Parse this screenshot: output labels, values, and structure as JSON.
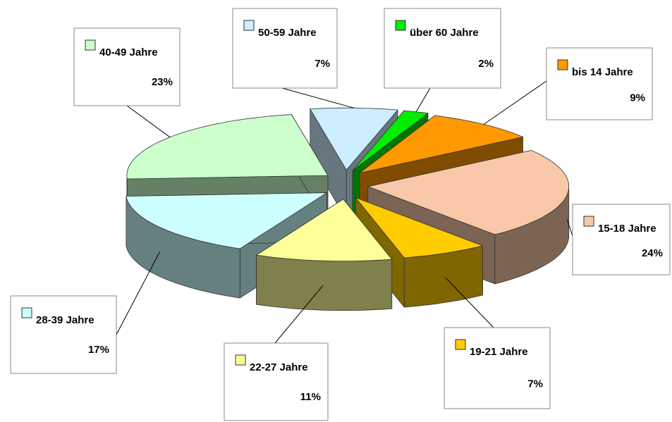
{
  "chart_data": {
    "type": "pie3d",
    "categories": [
      "bis 14 Jahre",
      "15-18 Jahre",
      "19-21 Jahre",
      "22-27 Jahre",
      "28-39 Jahre",
      "40-49 Jahre",
      "50-59 Jahre",
      "über 60 Jahre"
    ],
    "values": [
      9,
      24,
      7,
      11,
      17,
      23,
      7,
      2
    ],
    "value_labels": [
      "9%",
      "24%",
      "7%",
      "11%",
      "17%",
      "23%",
      "7%",
      "2%"
    ],
    "colors": [
      "#ff9900",
      "#f8c8a8",
      "#ffcc00",
      "#ffff99",
      "#ccffff",
      "#ccffcc",
      "#cceeff",
      "#00ee00"
    ]
  }
}
